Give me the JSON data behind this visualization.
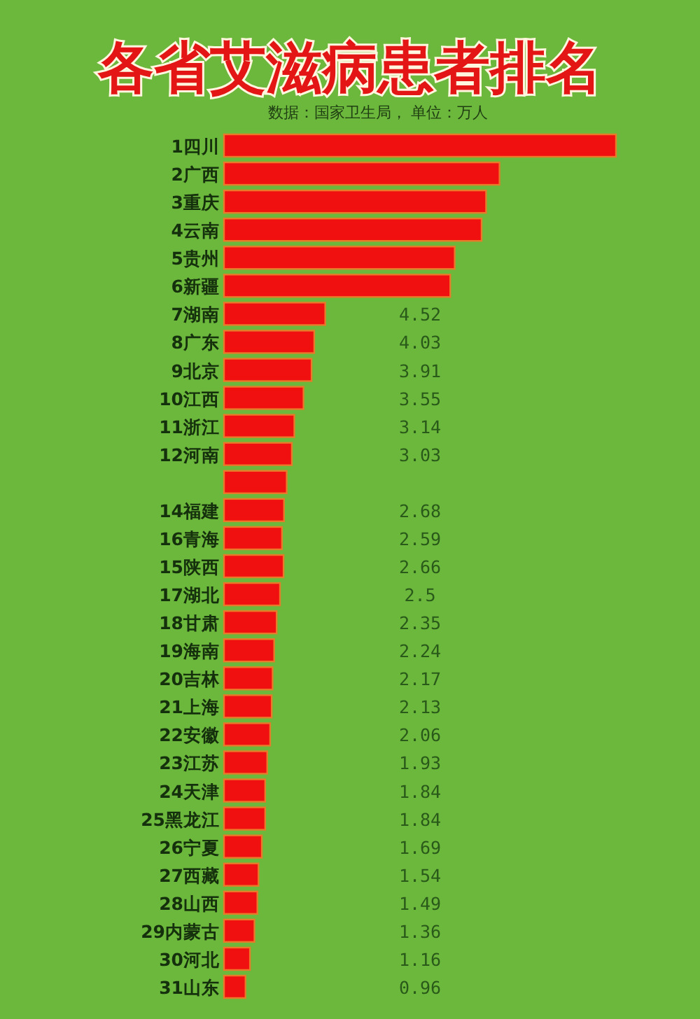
{
  "chart_data": {
    "type": "bar",
    "orientation": "horizontal",
    "title": "各省艾滋病患者排名",
    "subtitle": "数据：国家卫生局，  单位：万人",
    "categories": [
      "1四川",
      "2广西",
      "3重庆",
      "4云南",
      "5贵州",
      "6新疆",
      "7湖南",
      "8广东",
      "9北京",
      "10江西",
      "11浙江",
      "12河南",
      null,
      "14福建",
      "16青海",
      "15陕西",
      "17湖北",
      "18甘肃",
      "19海南",
      "20吉林",
      "21上海",
      "22安徽",
      "23江苏",
      "24天津",
      "25黑龙江",
      "26宁夏",
      "27西藏",
      "28山西",
      "29内蒙古",
      "30河北",
      "31山东"
    ],
    "values": [
      17.5,
      12.3,
      11.7,
      11.5,
      10.3,
      10.1,
      4.52,
      4.03,
      3.91,
      3.55,
      3.14,
      3.03,
      2.8,
      2.68,
      2.59,
      2.66,
      2.5,
      2.35,
      2.24,
      2.17,
      2.13,
      2.06,
      1.93,
      1.84,
      1.84,
      1.69,
      1.54,
      1.49,
      1.36,
      1.16,
      0.96
    ],
    "value_labels": [
      null,
      null,
      null,
      null,
      null,
      null,
      "4.52",
      "4.03",
      "3.91",
      "3.55",
      "3.14",
      "3.03",
      null,
      "2.68",
      "2.59",
      "2.66",
      "2.5",
      "2.35",
      "2.24",
      "2.17",
      "2.13",
      "2.06",
      "1.93",
      "1.84",
      "1.84",
      "1.69",
      "1.54",
      "1.49",
      "1.36",
      "1.16",
      "0.96"
    ],
    "color": "#f01010"
  }
}
